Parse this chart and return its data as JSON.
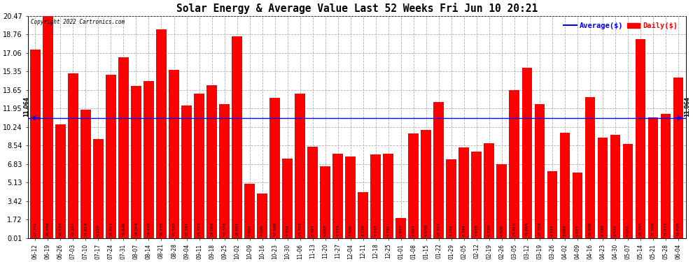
{
  "title": "Solar Energy & Average Value Last 52 Weeks Fri Jun 10 20:21",
  "copyright": "Copyright 2022 Cartronics.com",
  "legend_avg": "Average($)",
  "legend_daily": "Daily($)",
  "average_value": 11.064,
  "bar_color": "#ff0000",
  "average_line_color": "#0000ff",
  "background_color": "#ffffff",
  "grid_color": "#b0b0b0",
  "ylim_max": 20.47,
  "yticks": [
    0.01,
    1.72,
    3.42,
    5.13,
    6.83,
    8.54,
    10.24,
    11.95,
    13.65,
    15.35,
    17.06,
    18.76,
    20.47
  ],
  "categories": [
    "06-12",
    "06-19",
    "06-26",
    "07-03",
    "07-10",
    "07-17",
    "07-24",
    "07-31",
    "08-07",
    "08-14",
    "08-21",
    "08-28",
    "09-04",
    "09-11",
    "09-18",
    "09-25",
    "10-02",
    "10-09",
    "10-16",
    "10-23",
    "10-30",
    "11-06",
    "11-13",
    "11-20",
    "11-27",
    "12-04",
    "12-11",
    "12-18",
    "12-25",
    "01-01",
    "01-08",
    "01-15",
    "01-22",
    "01-29",
    "02-05",
    "02-12",
    "02-19",
    "02-26",
    "03-05",
    "03-12",
    "03-19",
    "03-26",
    "04-02",
    "04-09",
    "04-16",
    "04-23",
    "04-30",
    "05-07",
    "05-14",
    "05-21",
    "05-28",
    "06-04"
  ],
  "values": [
    17.341,
    20.468,
    10.459,
    15.187,
    11.814,
    9.159,
    15.022,
    16.646,
    14.004,
    14.47,
    19.235,
    15.507,
    12.191,
    13.323,
    14.069,
    12.376,
    18.601,
    5.001,
    4.096,
    12.94,
    7.334,
    13.325,
    8.397,
    6.637,
    7.774,
    7.506,
    4.226,
    7.743,
    7.791,
    1.873,
    9.663,
    9.939,
    12.511,
    7.252,
    8.344,
    7.978,
    8.72,
    6.806,
    13.615,
    15.685,
    12.359,
    6.144,
    9.692,
    6.015,
    12.968,
    9.249,
    9.51,
    8.651,
    18.355,
    11.108,
    11.432,
    14.82
  ],
  "bar_labels": [
    "17.341",
    "20.468",
    "10.459",
    "15.187",
    "11.814",
    "9.159",
    "15.022",
    "16.646",
    "14.004",
    "14.470",
    "19.235",
    "15.507",
    "12.191",
    "13.323",
    "14.069",
    "12.376",
    "18.601",
    "5.001",
    "4.096",
    "12.940",
    "7.334",
    "13.325",
    "8.397",
    "6.637",
    "7.774",
    "7.506",
    "4.226",
    "7.743",
    "7.791",
    "1.873",
    "9.663",
    "9.939",
    "12.511",
    "7.252",
    "8.344",
    "7.978",
    "8.720",
    "6.806",
    "13.615",
    "15.685",
    "12.359",
    "6.144",
    "9.692",
    "6.015",
    "12.968",
    "9.249",
    "9.510",
    "8.651",
    "18.355",
    "11.108",
    "11.432",
    "14.820"
  ]
}
